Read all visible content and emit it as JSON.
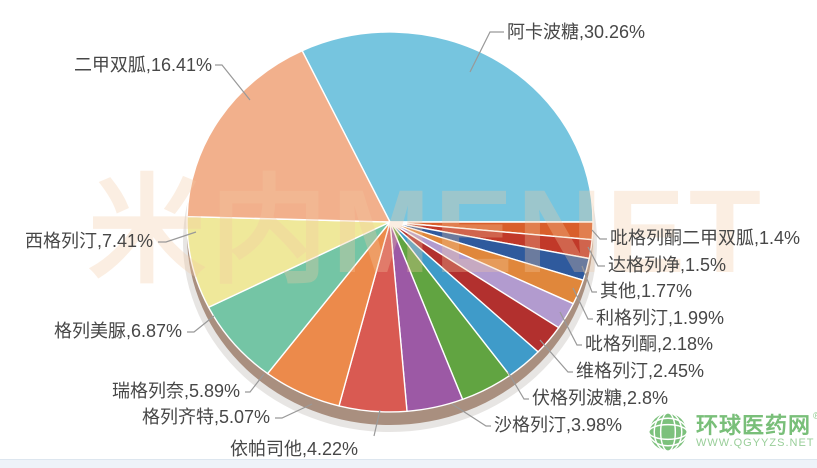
{
  "chart_data": {
    "type": "pie",
    "title": "",
    "legend": "none",
    "label_format": "name,percent",
    "start_rule": "largest slice ends at 3 o'clock, slices run clockwise",
    "slices": [
      {
        "name": "阿卡波糖",
        "value": 30.26,
        "display": "阿卡波糖,30.26%",
        "color": "#76C5DF"
      },
      {
        "name": "吡格列酮二甲双胍",
        "value": 1.4,
        "display": "吡格列酮二甲双胍,1.4%",
        "color": "#D95F2B"
      },
      {
        "name": "达格列净",
        "value": 1.5,
        "display": "达格列净,1.5%",
        "color": "#C13929"
      },
      {
        "name": "其他",
        "value": 1.77,
        "display": "其他,1.77%",
        "color": "#2F5A9D"
      },
      {
        "name": "利格列汀",
        "value": 1.99,
        "display": "利格列汀,1.99%",
        "color": "#E0873B"
      },
      {
        "name": "吡格列酮",
        "value": 2.18,
        "display": "吡格列酮,2.18%",
        "color": "#B29BCF"
      },
      {
        "name": "维格列汀",
        "value": 2.45,
        "display": "维格列汀,2.45%",
        "color": "#B2302E"
      },
      {
        "name": "伏格列波糖",
        "value": 2.8,
        "display": "伏格列波糖,2.8%",
        "color": "#3F9BC9"
      },
      {
        "name": "沙格列汀",
        "value": 3.98,
        "display": "沙格列汀,3.98%",
        "color": "#61A441"
      },
      {
        "name": "依帕司他",
        "value": 4.22,
        "display": "依帕司他,4.22%",
        "color": "#9C59A5"
      },
      {
        "name": "格列齐特",
        "value": 5.07,
        "display": "格列齐特,5.07%",
        "color": "#D95A52"
      },
      {
        "name": "瑞格列奈",
        "value": 5.89,
        "display": "瑞格列奈,5.89%",
        "color": "#EC8A4B"
      },
      {
        "name": "格列美脲",
        "value": 6.87,
        "display": "格列美脲,6.87%",
        "color": "#74C5A5"
      },
      {
        "name": "西格列汀",
        "value": 7.41,
        "display": "西格列汀,7.41%",
        "color": "#EFE89A"
      },
      {
        "name": "二甲双胍",
        "value": 16.41,
        "display": "二甲双胍,16.41%",
        "color": "#F2B08C"
      }
    ]
  },
  "watermark": {
    "text": "米内MENET",
    "color": "#F4C9A2"
  },
  "logo": {
    "brand": "环球医药网",
    "reg": "®",
    "site": "WWW.QGYYZS.NET",
    "accent_color": "#79bf79"
  }
}
